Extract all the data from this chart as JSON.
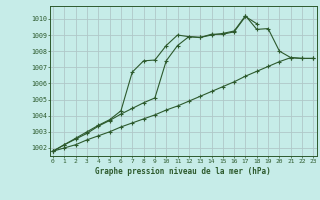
{
  "title": "Graphe pression niveau de la mer (hPa)",
  "bg_color": "#c6ece8",
  "grid_color": "#b0c8c8",
  "line_color": "#2d5a2d",
  "xlim": [
    -0.3,
    23.3
  ],
  "ylim": [
    1001.5,
    1010.8
  ],
  "xticks": [
    0,
    1,
    2,
    3,
    4,
    5,
    6,
    7,
    8,
    9,
    10,
    11,
    12,
    13,
    14,
    15,
    16,
    17,
    18,
    19,
    20,
    21,
    22,
    23
  ],
  "yticks": [
    1002,
    1003,
    1004,
    1005,
    1006,
    1007,
    1008,
    1009,
    1010
  ],
  "line_curve": {
    "x": [
      0,
      1,
      2,
      3,
      4,
      5,
      6,
      7,
      8,
      9,
      10,
      11,
      12,
      13,
      14,
      15,
      16,
      17,
      18
    ],
    "y": [
      1001.8,
      1002.2,
      1002.6,
      1003.0,
      1003.4,
      1003.75,
      1004.3,
      1006.7,
      1007.4,
      1007.45,
      1008.35,
      1009.0,
      1008.9,
      1008.85,
      1009.05,
      1009.05,
      1009.2,
      1010.15,
      1009.7
    ]
  },
  "line_diagonal": {
    "x": [
      0,
      1,
      2,
      3,
      4,
      5,
      6,
      7,
      8,
      9,
      10,
      11,
      12,
      13,
      14,
      15,
      16,
      17,
      18,
      19,
      20,
      21,
      22,
      23
    ],
    "y": [
      1001.8,
      1002.0,
      1002.2,
      1002.5,
      1002.75,
      1003.0,
      1003.3,
      1003.55,
      1003.8,
      1004.05,
      1004.35,
      1004.6,
      1004.9,
      1005.2,
      1005.5,
      1005.8,
      1006.1,
      1006.45,
      1006.75,
      1007.05,
      1007.35,
      1007.6,
      1007.55,
      1007.55
    ]
  },
  "line_peak": {
    "x": [
      0,
      1,
      2,
      3,
      4,
      5,
      6,
      7,
      8,
      9,
      10,
      11,
      12,
      13,
      14,
      15,
      16,
      17,
      18,
      19,
      20,
      21,
      22,
      23
    ],
    "y": [
      1001.8,
      1002.2,
      1002.55,
      1002.9,
      1003.35,
      1003.7,
      1004.1,
      1004.45,
      1004.8,
      1005.1,
      1007.4,
      1008.35,
      1008.9,
      1008.85,
      1009.0,
      1009.1,
      1009.25,
      1010.2,
      1009.35,
      1009.4,
      1008.0,
      1007.6,
      1007.55,
      1007.55
    ]
  }
}
